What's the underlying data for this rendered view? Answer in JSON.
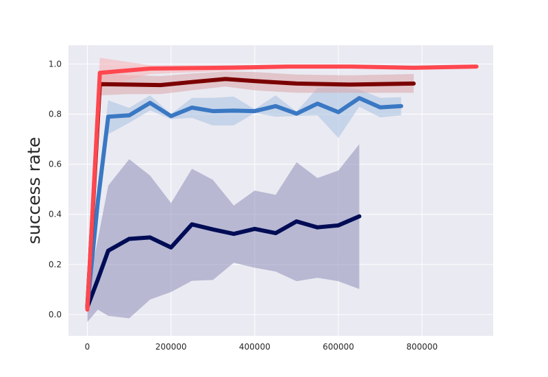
{
  "chart_data": {
    "type": "line",
    "title": "",
    "xlabel": "",
    "ylabel": "success rate",
    "xlim": [
      -45000,
      970000
    ],
    "ylim": [
      -0.085,
      1.075
    ],
    "x_ticks": [
      0,
      200000,
      400000,
      600000,
      800000
    ],
    "y_ticks": [
      0.0,
      0.2,
      0.4,
      0.6,
      0.8,
      1.0
    ],
    "x_tick_labels": [
      "0",
      "200000",
      "400000",
      "600000",
      "800000"
    ],
    "y_tick_labels": [
      "0.0",
      "0.2",
      "0.4",
      "0.6",
      "0.8",
      "1.0"
    ],
    "grid": true,
    "legend": "none",
    "style": {
      "background": "#eaeaf2",
      "grid_color": "#ffffff"
    },
    "series": [
      {
        "color": "#000c55",
        "band_color": "#8e8eba",
        "x": [
          0,
          25000,
          50000,
          100000,
          150000,
          200000,
          250000,
          300000,
          350000,
          400000,
          450000,
          500000,
          550000,
          600000,
          650000
        ],
        "y": [
          0.03,
          0.14,
          0.255,
          0.302,
          0.308,
          0.268,
          0.36,
          0.34,
          0.322,
          0.342,
          0.325,
          0.372,
          0.348,
          0.356,
          0.392
        ],
        "lower": [
          -0.03,
          0.02,
          -0.005,
          -0.015,
          0.06,
          0.09,
          0.135,
          0.138,
          0.207,
          0.187,
          0.172,
          0.133,
          0.147,
          0.133,
          0.102
        ],
        "upper": [
          0.09,
          0.3,
          0.515,
          0.62,
          0.555,
          0.445,
          0.582,
          0.538,
          0.435,
          0.495,
          0.478,
          0.608,
          0.545,
          0.575,
          0.68
        ]
      },
      {
        "color": "#3a78c3",
        "band_color": "#a8c1e2",
        "x": [
          0,
          25000,
          50000,
          100000,
          150000,
          200000,
          250000,
          300000,
          350000,
          400000,
          450000,
          500000,
          550000,
          600000,
          650000,
          700000,
          750000
        ],
        "y": [
          0.03,
          0.45,
          0.79,
          0.795,
          0.845,
          0.792,
          0.826,
          0.812,
          0.814,
          0.812,
          0.832,
          0.802,
          0.842,
          0.808,
          0.864,
          0.827,
          0.832
        ],
        "lower": [
          0.0,
          0.38,
          0.72,
          0.765,
          0.815,
          0.78,
          0.785,
          0.755,
          0.755,
          0.805,
          0.79,
          0.793,
          0.795,
          0.705,
          0.83,
          0.787,
          0.795
        ],
        "upper": [
          0.06,
          0.52,
          0.855,
          0.825,
          0.875,
          0.8,
          0.865,
          0.865,
          0.87,
          0.82,
          0.875,
          0.81,
          0.905,
          0.91,
          0.898,
          0.865,
          0.868
        ]
      },
      {
        "color": "#7b0000",
        "band_color": "#d9a6a9",
        "x": [
          0,
          30000,
          100000,
          175000,
          250000,
          330000,
          400000,
          500000,
          630000,
          780000
        ],
        "y": [
          0.03,
          0.92,
          0.918,
          0.916,
          0.928,
          0.94,
          0.932,
          0.922,
          0.918,
          0.922
        ],
        "lower": [
          0.0,
          0.875,
          0.88,
          0.88,
          0.895,
          0.91,
          0.895,
          0.885,
          0.885,
          0.885
        ],
        "upper": [
          0.06,
          0.965,
          0.955,
          0.952,
          0.962,
          0.97,
          0.968,
          0.958,
          0.955,
          0.96
        ]
      },
      {
        "color": "#ff474f",
        "band_color": "#f5b0b4",
        "x": [
          0,
          30000,
          150000,
          320000,
          480000,
          630000,
          780000,
          930000
        ],
        "y": [
          0.02,
          0.965,
          0.982,
          0.985,
          0.99,
          0.99,
          0.985,
          0.99
        ],
        "lower": [
          0.0,
          0.905,
          0.96,
          0.972,
          0.982,
          0.985,
          0.98,
          0.985
        ],
        "upper": [
          0.04,
          1.025,
          0.995,
          0.995,
          0.995,
          0.995,
          0.99,
          0.995
        ]
      }
    ]
  }
}
